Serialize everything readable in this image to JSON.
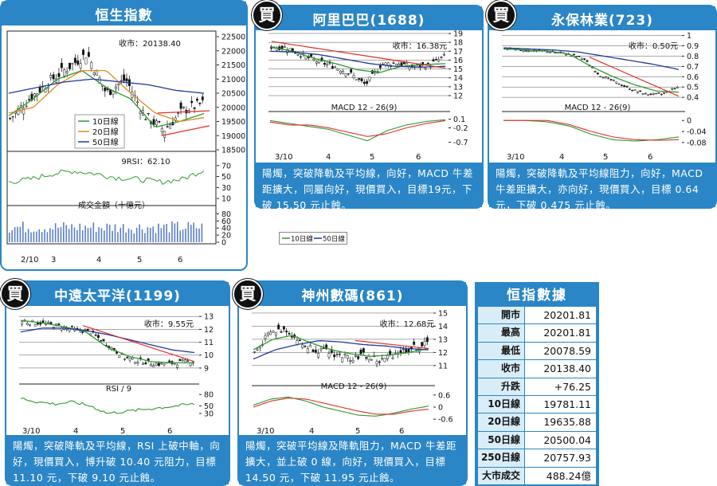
{
  "panels": {
    "hsi": {
      "title": "恒生指數",
      "close_label": "收市：20138.40",
      "legend": [
        "10日線",
        "20日線",
        "50日線"
      ],
      "rsi_label": "9RSI：62.10",
      "volume_label": "成交金額（十億元）",
      "dates": [
        "2/10",
        "3",
        "4",
        "5",
        "6"
      ]
    },
    "alibaba": {
      "title": "阿里巴巴(1688)",
      "close_label": "收市：16.38元",
      "macd_label": "MACD 12 - 26(9)",
      "dates": [
        "3/10",
        "4",
        "5",
        "6"
      ],
      "description": "陽燭，突破降軌及平均線，向好，MACD 牛差距擴大，同屬向好，現價買入，目標19元，下破 15.50 元止蝕。"
    },
    "evergreen": {
      "title": "永保林業(723)",
      "close_label": "收市：0.50元",
      "macd_label": "MACD 12 - 26(9)",
      "dates": [
        "3/10",
        "4",
        "5",
        "6"
      ],
      "description": "陽燭，突破降軌及平均線阻力，向好，MACD 牛差距擴大，亦向好，現價買入，目標 0.64 元，下破 0.475 元止蝕。"
    },
    "coscopac": {
      "title": "中遠太平洋(1199)",
      "close_label": "收市：9.55元",
      "rsi_label": "RSI / 9",
      "dates": [
        "3/10",
        "4",
        "5",
        "6"
      ],
      "description": "陽燭，突破降軌及平均線，RSI 上破中軸，向好，現價買入，博升破 10.40 元阻力，目標 11.10 元，下破 9.10 元止蝕。"
    },
    "digitalchina": {
      "title": "神州數碼(861)",
      "close_label": "收市：12.68元",
      "macd_label": "MACD 12 - 26(9)",
      "dates": [
        "3/10",
        "4",
        "5",
        "6"
      ],
      "description": "陽燭，突破平均線及降軌阻力，MACD 牛差距擴大，並上破 0 線，向好，現價買入，目標 14.50 元，下破 11.95 元止蝕。"
    }
  },
  "badge_text": "買",
  "standalone_legend": [
    "10日線",
    "50日線"
  ],
  "hsi_data": {
    "title": "恒指數據",
    "rows": [
      {
        "label": "開市",
        "value": "20201.81"
      },
      {
        "label": "最高",
        "value": "20201.81"
      },
      {
        "label": "最低",
        "value": "20078.59"
      },
      {
        "label": "收市",
        "value": "20138.40"
      },
      {
        "label": "升跌",
        "value": "+76.25"
      },
      {
        "label": "10日線",
        "value": "19781.11"
      },
      {
        "label": "20日線",
        "value": "19635.88"
      },
      {
        "label": "50日線",
        "value": "20500.04"
      },
      {
        "label": "250日線",
        "value": "20757.93"
      },
      {
        "label": "大市成交",
        "value": "488.24億"
      }
    ]
  },
  "colors": {
    "panel_blue": "#2a86c6",
    "ma10": "#2f9a2f",
    "ma20": "#e08a1e",
    "ma50": "#1f3b9a",
    "trend": "#e0302a"
  },
  "chart_data": [
    {
      "type": "line",
      "title": "恒生指數",
      "x": [
        "2/10",
        "3",
        "4",
        "5",
        "6"
      ],
      "series": [
        {
          "name": "10日線",
          "values": [
            19900,
            21100,
            20900,
            19500,
            19781
          ]
        },
        {
          "name": "20日線",
          "values": [
            20000,
            20800,
            21200,
            19800,
            19636
          ]
        },
        {
          "name": "50日線",
          "values": [
            20300,
            20500,
            20900,
            20800,
            20500
          ]
        }
      ],
      "y_ticks": [
        18500,
        19000,
        19500,
        20000,
        20500,
        21000,
        21500,
        22000,
        22500
      ],
      "rsi_ticks": [
        10,
        30,
        50,
        70
      ],
      "volume_ticks": [
        0,
        20,
        40,
        60,
        80
      ],
      "rsi_last": 62.1,
      "close": 20138.4
    },
    {
      "type": "line",
      "title": "阿里巴巴(1688)",
      "x": [
        "3/10",
        "4",
        "5",
        "6"
      ],
      "y_ticks": [
        12,
        13,
        14,
        15,
        16,
        17,
        18,
        19
      ],
      "macd_ticks": [
        0.1,
        -0.2,
        -0.7
      ],
      "close": 16.38
    },
    {
      "type": "line",
      "title": "永保林業(723)",
      "x": [
        "3/10",
        "4",
        "5",
        "6"
      ],
      "y_ticks": [
        0.4,
        0.5,
        0.6,
        0.7,
        0.8,
        0.9,
        1.0
      ],
      "macd_ticks": [
        0,
        -0.04,
        -0.08
      ],
      "close": 0.5
    },
    {
      "type": "line",
      "title": "中遠太平洋(1199)",
      "x": [
        "3/10",
        "4",
        "5",
        "6"
      ],
      "y_ticks": [
        9,
        10,
        11,
        12,
        13
      ],
      "rsi_ticks": [
        30,
        50,
        80
      ],
      "close": 9.55
    },
    {
      "type": "line",
      "title": "神州數碼(861)",
      "x": [
        "3/10",
        "4",
        "5",
        "6"
      ],
      "y_ticks": [
        11,
        12,
        13,
        14,
        15
      ],
      "macd_ticks": [
        0.6,
        0,
        -0.6
      ],
      "close": 12.68
    }
  ]
}
